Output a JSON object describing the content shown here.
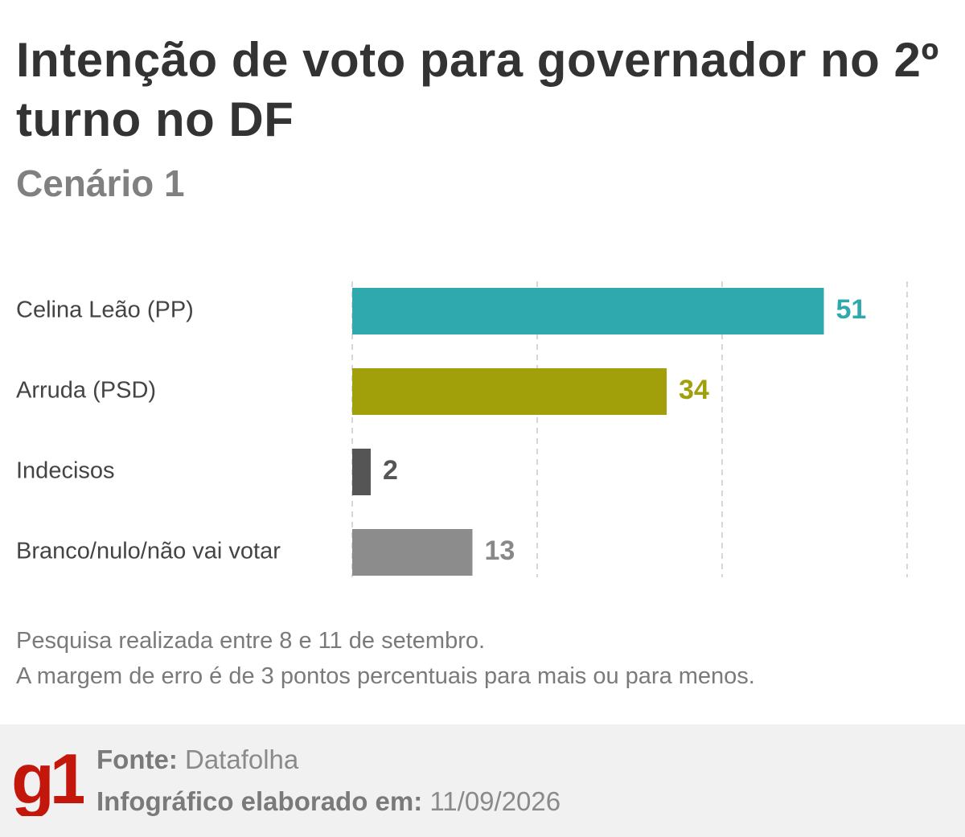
{
  "header": {
    "title": "Intenção de voto para governador no 2º turno no DF",
    "subtitle": "Cenário 1"
  },
  "chart_data": {
    "type": "bar",
    "orientation": "horizontal",
    "categories": [
      "Celina Leão (PP)",
      "Arruda (PSD)",
      "Indecisos",
      "Branco/nulo/não vai votar"
    ],
    "values": [
      51,
      34,
      2,
      13
    ],
    "colors": [
      "#2fa8ae",
      "#a1a00b",
      "#555555",
      "#8c8c8c"
    ],
    "label_colors": [
      "#2fa8ae",
      "#a1a00b",
      "#555555",
      "#888888"
    ],
    "xlim": [
      0,
      60
    ],
    "gridlines": [
      0,
      20,
      40,
      60
    ],
    "grid": true,
    "title": "Intenção de voto para governador no 2º turno no DF",
    "subtitle": "Cenário 1",
    "xlabel": "",
    "ylabel": ""
  },
  "notes": {
    "line1": "Pesquisa realizada entre 8 e 11 de setembro.",
    "line2": "A margem de erro é de 3 pontos percentuais para mais ou para menos."
  },
  "footer": {
    "logo_text": "g1",
    "logo_color": "#c4170c",
    "source_label": "Fonte:",
    "source_value": "Datafolha",
    "date_label": "Infográfico elaborado em:",
    "date_value": "11/09/2026"
  }
}
